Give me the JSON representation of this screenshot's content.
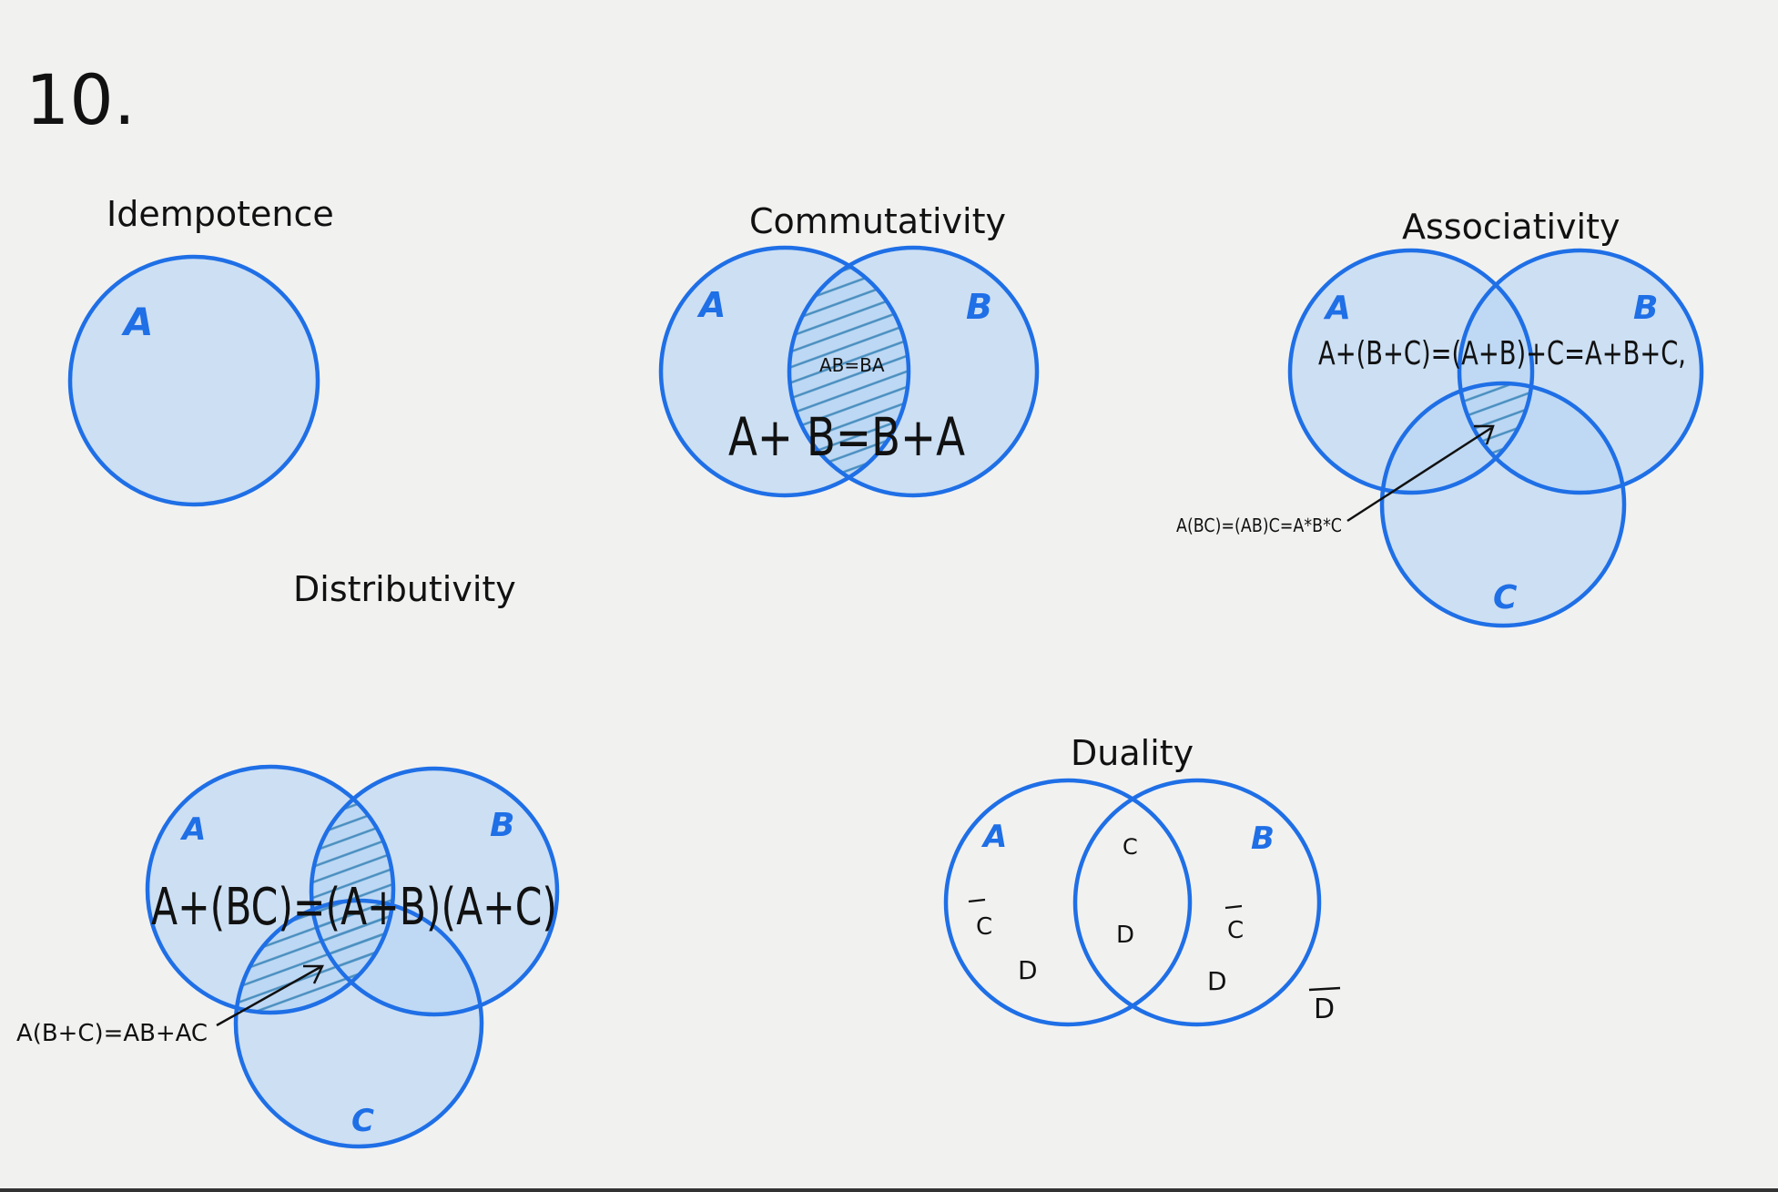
{
  "page_number": "10.",
  "idempotence": {
    "title": "Idempotence",
    "set_a": "A"
  },
  "commutativity": {
    "title": "Commutativity",
    "set_a": "A",
    "set_b": "B",
    "intersection_label": "AB=BA",
    "union_formula": "A+ B=B+A"
  },
  "associativity": {
    "title": "Associativity",
    "set_a": "A",
    "set_b": "B",
    "set_c": "C",
    "union_formula": "A+(B+C)=(A+B)+C=A+B+C,",
    "intersection_formula": "A(BC)=(AB)C=A*B*C"
  },
  "distributivity": {
    "title": "Distributivity",
    "set_a": "A",
    "set_b": "B",
    "set_c": "C",
    "union_formula": "A+(BC)=(A+B)(A+C)",
    "intersection_formula": "A(B+C)=AB+AC"
  },
  "duality": {
    "title": "Duality",
    "set_a": "A",
    "set_b": "B",
    "left_c_complement": "C",
    "left_d": "D",
    "center_c": "C",
    "center_d": "D",
    "right_c_complement": "C",
    "right_d": "D",
    "outer_d_complement": "D"
  }
}
